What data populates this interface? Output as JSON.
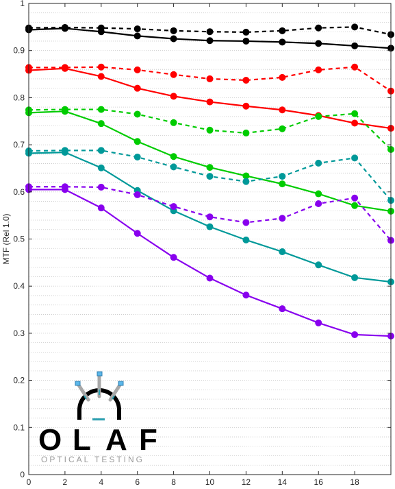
{
  "chart_data": {
    "type": "line",
    "title": "",
    "xlabel": "",
    "ylabel": "MTF (Rel 1.0)",
    "xlim": [
      0,
      20
    ],
    "ylim": [
      0,
      1
    ],
    "grid": "horizontal dotted",
    "x_ticks": [
      0,
      2,
      4,
      6,
      8,
      10,
      12,
      14,
      16,
      18
    ],
    "y_ticks": [
      0,
      0.1,
      0.2,
      0.3,
      0.4,
      0.5,
      0.6,
      0.7,
      0.8,
      0.9,
      1
    ],
    "x": [
      0,
      2,
      4,
      6,
      8,
      10,
      12,
      14,
      16,
      18,
      20
    ],
    "series": [
      {
        "color": "#000000",
        "dash": false,
        "values": [
          0.944,
          0.947,
          0.94,
          0.931,
          0.925,
          0.921,
          0.92,
          0.918,
          0.915,
          0.91,
          0.905
        ]
      },
      {
        "color": "#000000",
        "dash": true,
        "values": [
          0.948,
          0.949,
          0.948,
          0.946,
          0.942,
          0.94,
          0.939,
          0.942,
          0.948,
          0.95,
          0.934
        ]
      },
      {
        "color": "#ff0000",
        "dash": false,
        "values": [
          0.858,
          0.862,
          0.845,
          0.82,
          0.803,
          0.791,
          0.782,
          0.774,
          0.762,
          0.746,
          0.735
        ]
      },
      {
        "color": "#ff0000",
        "dash": true,
        "values": [
          0.864,
          0.864,
          0.865,
          0.859,
          0.849,
          0.84,
          0.837,
          0.843,
          0.859,
          0.865,
          0.814
        ]
      },
      {
        "color": "#00cc00",
        "dash": false,
        "values": [
          0.768,
          0.771,
          0.745,
          0.707,
          0.675,
          0.652,
          0.634,
          0.617,
          0.596,
          0.571,
          0.559
        ]
      },
      {
        "color": "#00cc00",
        "dash": true,
        "values": [
          0.774,
          0.775,
          0.775,
          0.765,
          0.747,
          0.731,
          0.725,
          0.734,
          0.76,
          0.766,
          0.69
        ]
      },
      {
        "color": "#009999",
        "dash": false,
        "values": [
          0.682,
          0.684,
          0.651,
          0.603,
          0.56,
          0.526,
          0.498,
          0.473,
          0.445,
          0.418,
          0.409
        ]
      },
      {
        "color": "#009999",
        "dash": true,
        "values": [
          0.687,
          0.688,
          0.688,
          0.674,
          0.653,
          0.633,
          0.622,
          0.633,
          0.661,
          0.672,
          0.582
        ]
      },
      {
        "color": "#8800ee",
        "dash": false,
        "values": [
          0.605,
          0.605,
          0.566,
          0.512,
          0.461,
          0.417,
          0.381,
          0.352,
          0.322,
          0.297,
          0.294
        ]
      },
      {
        "color": "#8800ee",
        "dash": true,
        "values": [
          0.611,
          0.611,
          0.61,
          0.594,
          0.569,
          0.547,
          0.535,
          0.544,
          0.575,
          0.587,
          0.497
        ]
      }
    ]
  },
  "logo": {
    "letters": [
      "O",
      "L",
      "A",
      "F"
    ],
    "subtitle": "OPTICAL TESTING"
  }
}
